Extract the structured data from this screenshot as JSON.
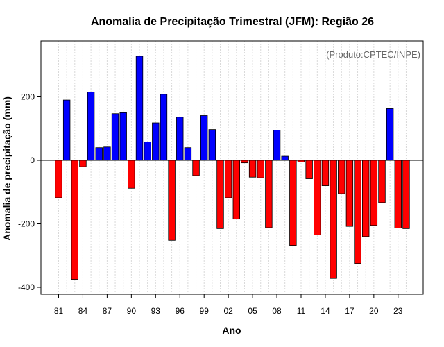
{
  "chart_data": {
    "type": "bar",
    "title": "Anomalia de Precipitação Trimestral (JFM): Região 26",
    "xlabel": "Ano",
    "ylabel": "Anomalia de precipitação (mm)",
    "annotation": "(Produto:CPTEC/INPE)",
    "ylim": [
      -420,
      375
    ],
    "yticks": [
      -400,
      -200,
      0,
      200
    ],
    "ytick_labels": [
      "-400",
      "-200",
      "0",
      "200"
    ],
    "xtick_labels": [
      "81",
      "84",
      "87",
      "90",
      "93",
      "96",
      "99",
      "02",
      "05",
      "08",
      "11",
      "14",
      "17",
      "20",
      "23"
    ],
    "grid": true,
    "positive_color": "#0000ff",
    "negative_color": "#ff0000",
    "categories": [
      "1981",
      "1982",
      "1983",
      "1984",
      "1985",
      "1986",
      "1987",
      "1988",
      "1989",
      "1990",
      "1991",
      "1992",
      "1993",
      "1994",
      "1995",
      "1996",
      "1997",
      "1998",
      "1999",
      "2000",
      "2001",
      "2002",
      "2003",
      "2004",
      "2005",
      "2006",
      "2007",
      "2008",
      "2009",
      "2010",
      "2011",
      "2012",
      "2013",
      "2014",
      "2015",
      "2016",
      "2017",
      "2018",
      "2019",
      "2020",
      "2021",
      "2022",
      "2023",
      "2024"
    ],
    "values": [
      -118,
      190,
      -375,
      -20,
      215,
      40,
      42,
      147,
      150,
      -88,
      328,
      58,
      118,
      208,
      -252,
      136,
      40,
      -48,
      141,
      97,
      -215,
      -118,
      -185,
      -8,
      -53,
      -55,
      -212,
      95,
      13,
      -268,
      -5,
      -58,
      -235,
      -80,
      -372,
      -105,
      -208,
      -325,
      -240,
      -205,
      -133,
      163,
      -213,
      -215
    ]
  }
}
